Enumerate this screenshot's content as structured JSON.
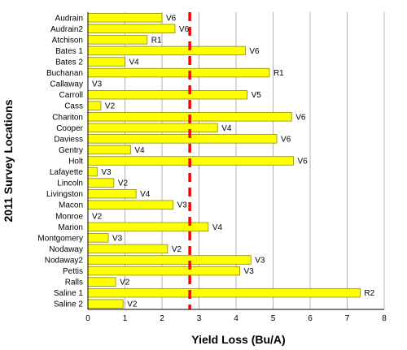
{
  "chart_data": {
    "type": "bar",
    "orientation": "horizontal",
    "title": "",
    "xlabel": "Yield Loss (Bu/A)",
    "ylabel": "2011 Survey Locations",
    "xlim": [
      0,
      8
    ],
    "xticks": [
      0,
      1,
      2,
      3,
      4,
      5,
      6,
      7,
      8
    ],
    "grid": "vertical",
    "bar_color": "#ffff00",
    "bar_border_color": "#8c8c00",
    "reference_line": {
      "value": 2.75,
      "style": "dashed",
      "color": "#ff0000"
    },
    "categories": [
      "Audrain",
      "Audrain2",
      "Atchison",
      "Bates 1",
      "Bates 2",
      "Buchanan",
      "Callaway",
      "Carroll",
      "Cass",
      "Chariton",
      "Cooper",
      "Daviess",
      "Gentry",
      "Holt",
      "Lafayette",
      "Lincoln",
      "Livingston",
      "Macon",
      "Monroe",
      "Marion",
      "Montgomery",
      "Nodaway",
      "Nodaway2",
      "Pettis",
      "Ralls",
      "Saline 1",
      "Saline 2"
    ],
    "values": [
      2.0,
      2.35,
      1.6,
      4.25,
      1.0,
      4.9,
      0.0,
      4.3,
      0.35,
      5.5,
      3.5,
      5.1,
      1.15,
      5.55,
      0.25,
      0.7,
      1.3,
      2.3,
      0.0,
      3.25,
      0.55,
      2.15,
      4.4,
      4.1,
      0.75,
      7.35,
      0.95
    ],
    "labels": [
      "V6",
      "V6",
      "R1",
      "V6",
      "V4",
      "R1",
      "V3",
      "V5",
      "V2",
      "V6",
      "V4",
      "V6",
      "V4",
      "V6",
      "V3",
      "V2",
      "V4",
      "V3",
      "V2",
      "V4",
      "V3",
      "V2",
      "V3",
      "V3",
      "V2",
      "R2",
      "V2"
    ]
  }
}
